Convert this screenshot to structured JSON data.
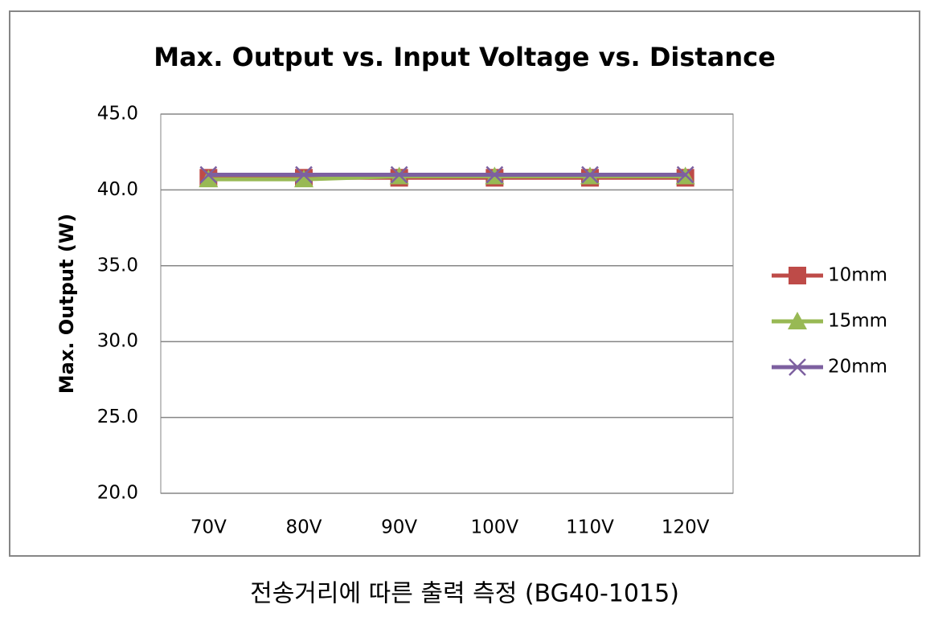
{
  "chart_data": {
    "type": "line",
    "title": "Max. Output vs. Input Voltage vs. Distance",
    "y_label": "Max. Output (W)",
    "caption": "전송거리에 따른 출력 측정 (BG40-1015)",
    "categories": [
      "70V",
      "80V",
      "90V",
      "100V",
      "110V",
      "120V"
    ],
    "series": [
      {
        "name": "10mm",
        "color": "#be4b48",
        "marker": "square",
        "values": [
          40.8,
          40.8,
          40.8,
          40.8,
          40.8,
          40.8
        ]
      },
      {
        "name": "15mm",
        "color": "#98b954",
        "marker": "triangle",
        "values": [
          40.7,
          40.7,
          40.9,
          40.9,
          40.9,
          40.9
        ]
      },
      {
        "name": "20mm",
        "color": "#7d60a0",
        "marker": "x",
        "values": [
          41.0,
          41.0,
          41.0,
          41.0,
          41.0,
          41.0
        ]
      }
    ],
    "ylim": [
      20,
      45
    ],
    "yticks": [
      {
        "value": 20,
        "label": "20.0"
      },
      {
        "value": 25,
        "label": "25.0"
      },
      {
        "value": 30,
        "label": "30.0"
      },
      {
        "value": 35,
        "label": "35.0"
      },
      {
        "value": 40,
        "label": "40.0"
      },
      {
        "value": 45,
        "label": "45.0"
      }
    ],
    "grid": true,
    "legend": "right"
  }
}
